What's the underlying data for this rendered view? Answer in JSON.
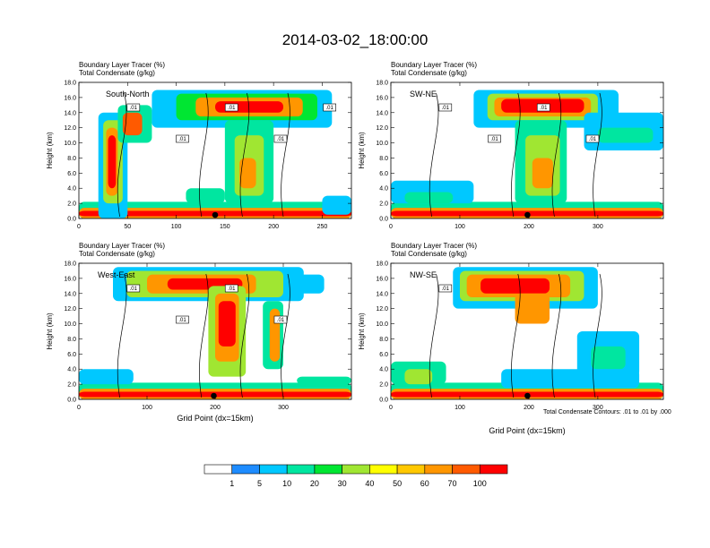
{
  "title": "2014-03-02_18:00:00",
  "footnote": "Total Condensate Contours: .01 to .01 by .000",
  "colors": {
    "levels": [
      "#ffffff",
      "#1e8cff",
      "#00c8ff",
      "#00e6a0",
      "#00e632",
      "#a0e632",
      "#ffff00",
      "#ffc800",
      "#ff9600",
      "#ff5a00",
      "#ff0000"
    ]
  },
  "colorbar": {
    "labels": [
      "1",
      "5",
      "10",
      "20",
      "30",
      "40",
      "50",
      "60",
      "70",
      "100"
    ]
  },
  "chart_data": [
    {
      "type": "heatmap",
      "panel_label": "South-North",
      "line1": "Boundary Layer Tracer    (%)",
      "line2": "Total Condensate   (g/kg)",
      "ylabel": "Height (km)",
      "xlabel": "",
      "xlim": [
        0,
        280
      ],
      "ylim": [
        0,
        18
      ],
      "xticks": [
        "0",
        "50",
        "100",
        "150",
        "200",
        "250"
      ],
      "yticks": [
        "0.0",
        "2.0",
        "4.0",
        "6.0",
        "8.0",
        "10.0",
        "12.0",
        "14.0",
        "16.0",
        "18.0"
      ],
      "contour_labels": [
        ".01",
        ".01",
        ".01",
        ".01",
        ".01"
      ],
      "marker_x": 140
    },
    {
      "type": "heatmap",
      "panel_label": "SW-NE",
      "line1": "Boundary Layer Tracer    (%)",
      "line2": "Total Condensate   (g/kg)",
      "ylabel": "Height (km)",
      "xlabel": "",
      "xlim": [
        0,
        395
      ],
      "ylim": [
        0,
        18
      ],
      "xticks": [
        "0",
        "100",
        "200",
        "300"
      ],
      "yticks": [
        "0.0",
        "2.0",
        "4.0",
        "6.0",
        "8.0",
        "10.0",
        "12.0",
        "14.0",
        "16.0",
        "18.0"
      ],
      "contour_labels": [
        ".01",
        ".01",
        ".01",
        ".01"
      ],
      "marker_x": 198
    },
    {
      "type": "heatmap",
      "panel_label": "West-East",
      "line1": "Boundary Layer Tracer    (%)",
      "line2": "Total Condensate   (g/kg)",
      "ylabel": "Height (km)",
      "xlabel": "Grid Point (dx=15km)",
      "xlim": [
        0,
        400
      ],
      "ylim": [
        0,
        18
      ],
      "xticks": [
        "0",
        "100",
        "200",
        "300"
      ],
      "yticks": [
        "0.0",
        "2.0",
        "4.0",
        "6.0",
        "8.0",
        "10.0",
        "12.0",
        "14.0",
        "16.0",
        "18.0"
      ],
      "contour_labels": [
        ".01",
        ".01",
        ".01",
        ".01"
      ],
      "marker_x": 198
    },
    {
      "type": "heatmap",
      "panel_label": "NW-SE",
      "line1": "Boundary Layer Tracer    (%)",
      "line2": "Total Condensate   (g/kg)",
      "ylabel": "Height (km)",
      "xlabel": "Grid Point (dx=15km)",
      "xlim": [
        0,
        395
      ],
      "ylim": [
        0,
        18
      ],
      "xticks": [
        "0",
        "100",
        "200",
        "300"
      ],
      "yticks": [
        "0.0",
        "2.0",
        "4.0",
        "6.0",
        "8.0",
        "10.0",
        "12.0",
        "14.0",
        "16.0",
        "18.0"
      ],
      "contour_labels": [
        ".01"
      ],
      "marker_x": 198
    }
  ]
}
